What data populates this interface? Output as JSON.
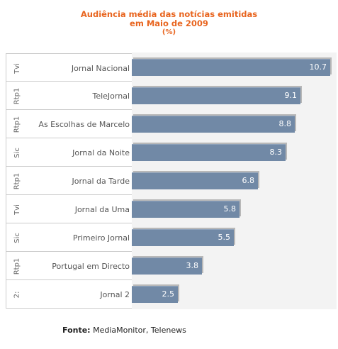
{
  "chart_data": {
    "type": "bar",
    "orientation": "horizontal",
    "title": "Audiência média das notícias emitidas em Maio de 2009",
    "title_lines": [
      "Audiência média das notícias emitidas",
      "em Maio de 2009"
    ],
    "unit": "(%)",
    "categories": [
      {
        "channel": "Tvi",
        "program": "Jornal Nacional"
      },
      {
        "channel": "Rtp1",
        "program": "TeleJornal"
      },
      {
        "channel": "Rtp1",
        "program": "As Escolhas de Marcelo"
      },
      {
        "channel": "Sic",
        "program": "Jornal da Noite"
      },
      {
        "channel": "Rtp1",
        "program": "Jornal da Tarde"
      },
      {
        "channel": "Tvi",
        "program": "Jornal da Uma"
      },
      {
        "channel": "Sic",
        "program": "Primeiro Jornal"
      },
      {
        "channel": "Rtp1",
        "program": "Portugal em Directo"
      },
      {
        "channel": "2:",
        "program": "Jornal 2"
      }
    ],
    "values": [
      10.7,
      9.1,
      8.8,
      8.3,
      6.8,
      5.8,
      5.5,
      3.8,
      2.5
    ],
    "xlim": [
      0,
      10.7
    ],
    "colors": {
      "bar": "#7189a6",
      "shadow": "#b8b8b8",
      "title": "#e8641e"
    }
  },
  "source": {
    "label": "Fonte:",
    "text": " MediaMonitor, Telenews"
  }
}
